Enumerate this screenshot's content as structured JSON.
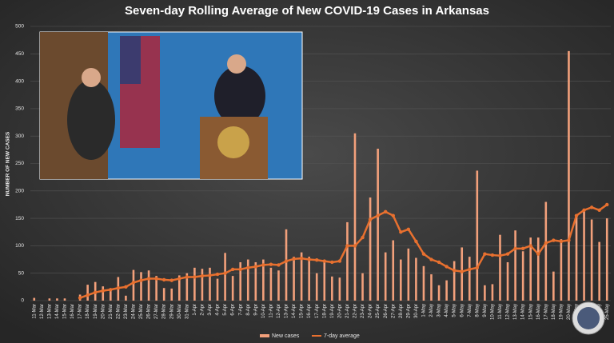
{
  "chart_data": {
    "type": "bar_line",
    "title": "Seven-day Rolling Average of New COVID-19 Cases in Arkansas",
    "y_label": "NUMBER OF NEW CASES",
    "categories": [
      "11-Mar",
      "12-Mar",
      "13-Mar",
      "14-Mar",
      "15-Mar",
      "16-Mar",
      "17-Mar",
      "18-Mar",
      "19-Mar",
      "20-Mar",
      "21-Mar",
      "22-Mar",
      "23-Mar",
      "24-Mar",
      "25-Mar",
      "26-Mar",
      "27-Mar",
      "28-Mar",
      "29-Mar",
      "30-Mar",
      "31-Mar",
      "1-Apr",
      "2-Apr",
      "3-Apr",
      "4-Apr",
      "5-Apr",
      "6-Apr",
      "7-Apr",
      "8-Apr",
      "9-Apr",
      "10-Apr",
      "11-Apr",
      "12-Apr",
      "13-Apr",
      "14-Apr",
      "15-Apr",
      "16-Apr",
      "17-Apr",
      "18-Apr",
      "19-Apr",
      "20-Apr",
      "21-Apr",
      "22-Apr",
      "23-Apr",
      "24-Apr",
      "25-Apr",
      "26-Apr",
      "27-Apr",
      "28-Apr",
      "29-Apr",
      "30-Apr",
      "1-May",
      "2-May",
      "3-May",
      "4-May",
      "5-May",
      "6-May",
      "7-May",
      "8-May",
      "9-May",
      "10-May",
      "11-May",
      "12-May",
      "13-May",
      "14-May",
      "15-May",
      "16-May",
      "17-May",
      "18-May",
      "19-May",
      "20-May",
      "21-May",
      "22-May",
      "23-May",
      "24-May",
      "25-May"
    ],
    "series": [
      {
        "name": "New cases",
        "kind": "bar",
        "color": "#f2a07b",
        "values": [
          5,
          0,
          4,
          4,
          4,
          0,
          11,
          29,
          34,
          26,
          22,
          43,
          9,
          56,
          52,
          55,
          45,
          23,
          22,
          46,
          50,
          60,
          58,
          60,
          40,
          87,
          45,
          70,
          75,
          70,
          75,
          60,
          55,
          130,
          80,
          88,
          80,
          50,
          72,
          44,
          42,
          143,
          305,
          50,
          188,
          277,
          88,
          110,
          75,
          95,
          78,
          63,
          48,
          28,
          37,
          72,
          97,
          80,
          237,
          28,
          30,
          120,
          70,
          128,
          90,
          115,
          115,
          180,
          53,
          112,
          455,
          153,
          163,
          148,
          107,
          150
        ]
      },
      {
        "name": "7-day average",
        "kind": "line",
        "color": "#e8702f",
        "values": [
          null,
          null,
          null,
          null,
          null,
          null,
          5,
          10,
          15,
          18,
          20,
          23,
          25,
          33,
          37,
          40,
          40,
          38,
          37,
          40,
          43,
          43,
          45,
          46,
          48,
          50,
          57,
          57,
          60,
          62,
          65,
          66,
          65,
          72,
          76,
          77,
          75,
          74,
          72,
          70,
          72,
          100,
          100,
          115,
          148,
          155,
          162,
          155,
          125,
          130,
          108,
          85,
          75,
          70,
          62,
          55,
          53,
          57,
          60,
          85,
          83,
          82,
          85,
          95,
          95,
          100,
          85,
          105,
          110,
          108,
          110,
          155,
          165,
          170,
          165,
          175
        ]
      }
    ],
    "ylim": [
      0,
      500
    ],
    "yticks": [
      0,
      50,
      100,
      150,
      200,
      250,
      300,
      350,
      400,
      450,
      500
    ],
    "grid": true,
    "legend": "bottom"
  }
}
